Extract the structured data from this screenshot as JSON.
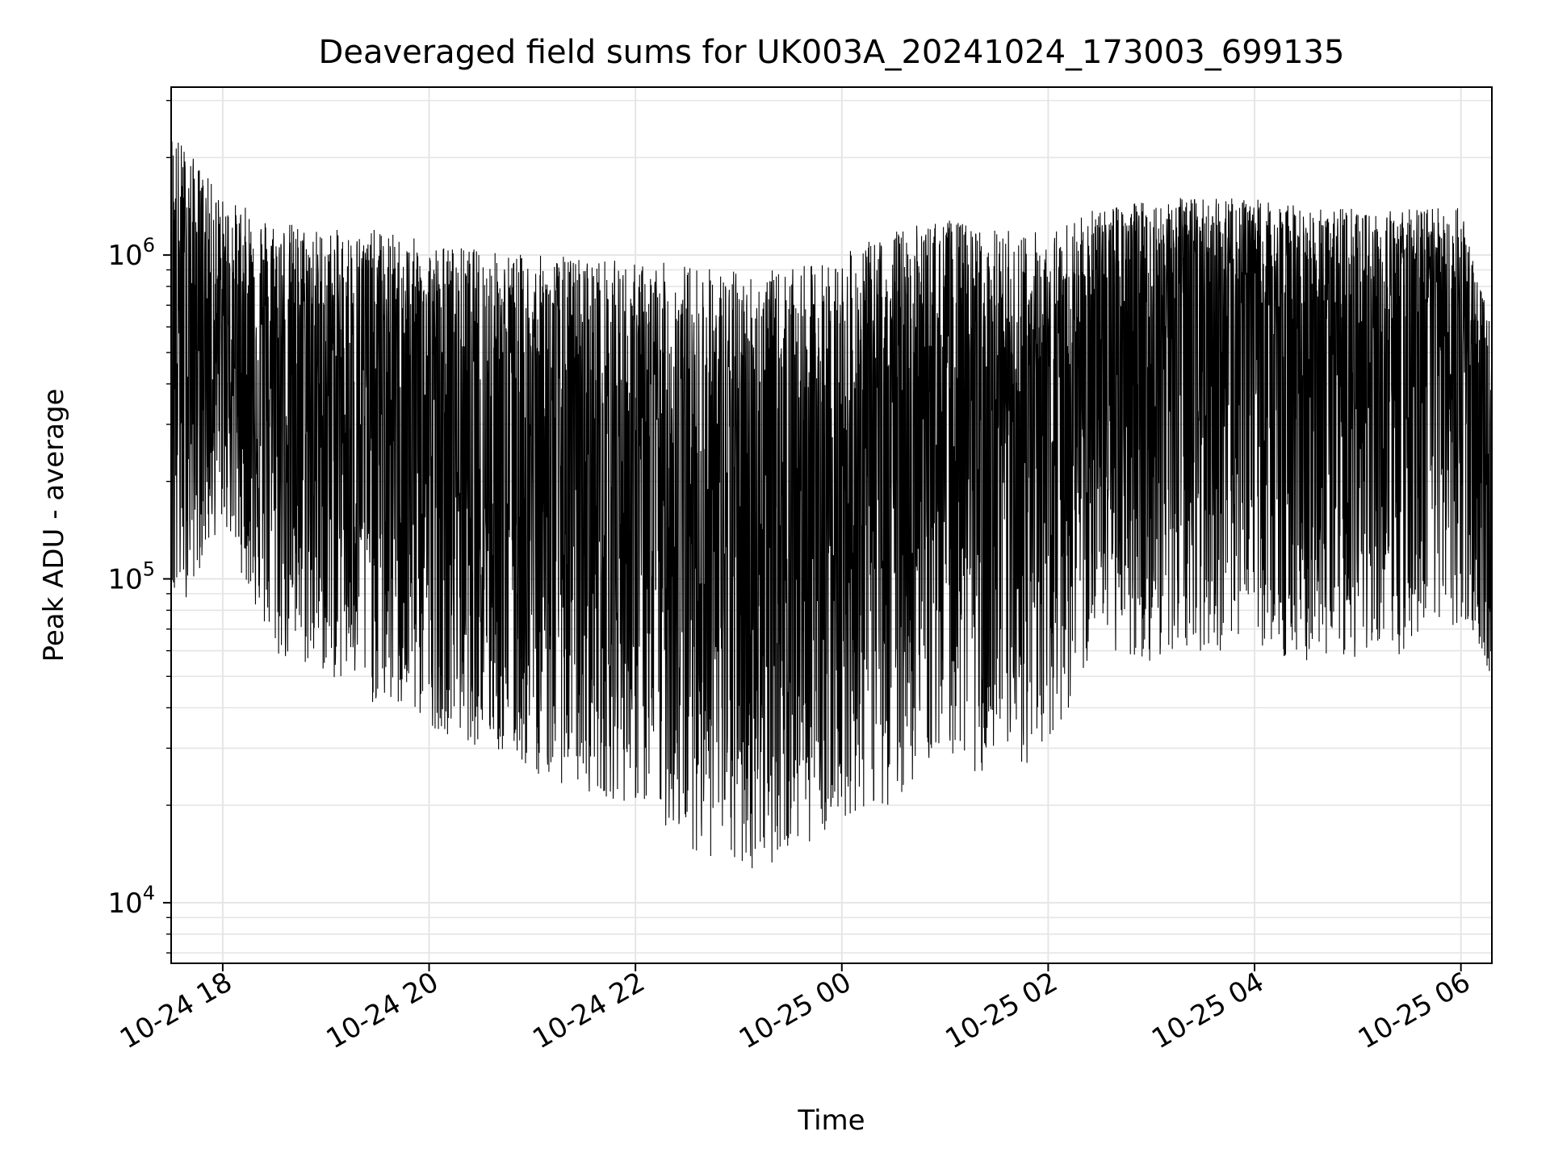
{
  "chart_data": {
    "type": "line",
    "title": "Deaveraged field sums for UK003A_20241024_173003_699135",
    "xlabel": "Time",
    "ylabel": "Peak ADU - average",
    "xscale": "time",
    "yscale": "log",
    "xlim": [
      "2024-10-24 17:30",
      "2024-10-25 06:18"
    ],
    "ylim": [
      6500,
      3300000
    ],
    "grid": true,
    "line_color": "#000000",
    "grid_color": "#e5e5e5",
    "x_ticks": [
      {
        "label": "10-24 18",
        "value": "2024-10-24 18:00"
      },
      {
        "label": "10-24 20",
        "value": "2024-10-24 20:00"
      },
      {
        "label": "10-24 22",
        "value": "2024-10-24 22:00"
      },
      {
        "label": "10-25 00",
        "value": "2024-10-25 00:00"
      },
      {
        "label": "10-25 02",
        "value": "2024-10-25 02:00"
      },
      {
        "label": "10-25 04",
        "value": "2024-10-25 04:00"
      },
      {
        "label": "10-25 06",
        "value": "2024-10-25 06:00"
      }
    ],
    "y_ticks": [
      {
        "base": "10",
        "exp": "4",
        "value": 10000
      },
      {
        "base": "10",
        "exp": "5",
        "value": 100000
      },
      {
        "base": "10",
        "exp": "6",
        "value": 1000000
      }
    ],
    "series": [
      {
        "color": "#000000",
        "x": [
          "2024-10-24 17:30",
          "2024-10-24 18:00",
          "2024-10-24 18:30",
          "2024-10-24 19:00",
          "2024-10-24 19:30",
          "2024-10-24 20:00",
          "2024-10-24 20:30",
          "2024-10-24 21:00",
          "2024-10-24 21:30",
          "2024-10-24 22:00",
          "2024-10-24 22:30",
          "2024-10-24 23:00",
          "2024-10-24 23:30",
          "2024-10-25 00:00",
          "2024-10-25 00:30",
          "2024-10-25 01:00",
          "2024-10-25 01:30",
          "2024-10-25 02:00",
          "2024-10-25 02:30",
          "2024-10-25 03:00",
          "2024-10-25 03:30",
          "2024-10-25 04:00",
          "2024-10-25 04:30",
          "2024-10-25 05:00",
          "2024-10-25 05:30",
          "2024-10-25 06:00",
          "2024-10-25 06:18"
        ],
        "low": [
          70000,
          150000,
          55000,
          50000,
          40000,
          35000,
          30000,
          25000,
          22000,
          20000,
          15000,
          12000,
          14000,
          18000,
          20000,
          30000,
          22000,
          30000,
          60000,
          55000,
          60000,
          60000,
          55000,
          55000,
          50000,
          70000,
          50000
        ],
        "mid": [
          600000,
          500000,
          380000,
          320000,
          300000,
          260000,
          220000,
          200000,
          190000,
          170000,
          150000,
          130000,
          140000,
          150000,
          250000,
          300000,
          200000,
          300000,
          500000,
          550000,
          600000,
          550000,
          500000,
          500000,
          480000,
          550000,
          200000
        ],
        "high": [
          2500000,
          1500000,
          1300000,
          1200000,
          1200000,
          1100000,
          1050000,
          1000000,
          1000000,
          950000,
          950000,
          900000,
          900000,
          1000000,
          1200000,
          1300000,
          1200000,
          1200000,
          1400000,
          1500000,
          1500000,
          1500000,
          1400000,
          1400000,
          1400000,
          1400000,
          600000
        ]
      }
    ]
  }
}
